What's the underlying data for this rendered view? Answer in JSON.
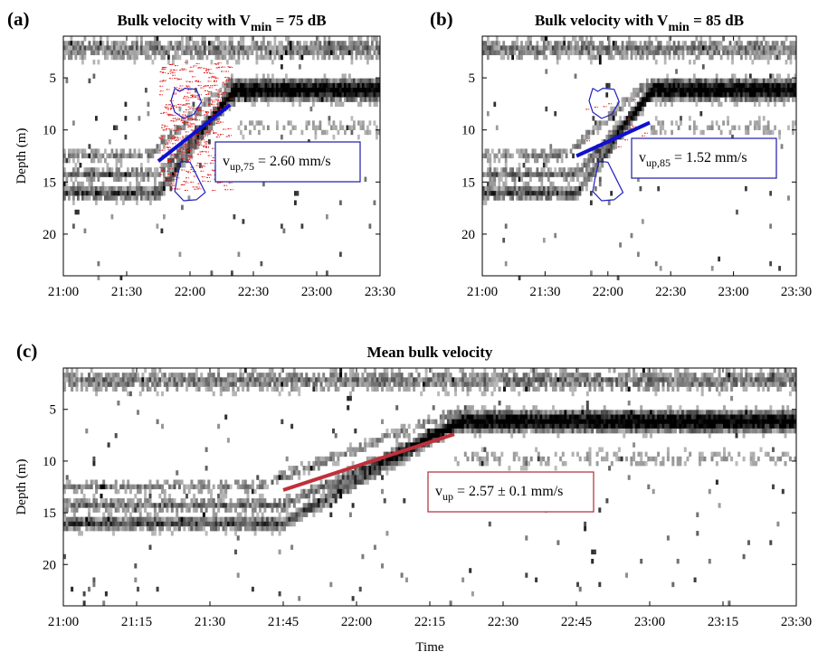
{
  "chart_data": [
    {
      "type": "heatmap",
      "panel_label": "(a)",
      "title_prefix": "Bulk velocity with V",
      "title_sub": "min",
      "title_suffix": " = 75 dB",
      "ylabel": "Depth (m)",
      "xlabel": "",
      "xlim": [
        "21:00",
        "23:30"
      ],
      "ylim": [
        24,
        1
      ],
      "y_reversed": true,
      "x_ticks": [
        "21:00",
        "21:30",
        "22:00",
        "22:30",
        "23:00",
        "23:30"
      ],
      "y_ticks": [
        5,
        10,
        15,
        20
      ],
      "colormap": "grayscale (white = low backscatter, black = high)",
      "fit_line": {
        "x": [
          "21:45",
          "22:19"
        ],
        "depth": [
          13.0,
          7.6
        ],
        "color": "#1010d0"
      },
      "annotation": {
        "main": "v",
        "sub": "up,75",
        "rest": " = 2.60 mm/s",
        "border": "#1a1aa6"
      },
      "detections_color": "#e01818",
      "region_outlines_color": "#2020c0"
    },
    {
      "type": "heatmap",
      "panel_label": "(b)",
      "title_prefix": "Bulk velocity with V",
      "title_sub": "min",
      "title_suffix": " = 85 dB",
      "ylabel": "",
      "xlabel": "",
      "xlim": [
        "21:00",
        "23:30"
      ],
      "ylim": [
        24,
        1
      ],
      "y_reversed": true,
      "x_ticks": [
        "21:00",
        "21:30",
        "22:00",
        "22:30",
        "23:00",
        "23:30"
      ],
      "y_ticks": [
        5,
        10,
        15,
        20
      ],
      "colormap": "grayscale (white = low backscatter, black = high)",
      "fit_line": {
        "x": [
          "21:45",
          "22:20"
        ],
        "depth": [
          12.5,
          9.3
        ],
        "color": "#1010d0"
      },
      "annotation": {
        "main": "v",
        "sub": "up,85",
        "rest": " = 1.52 mm/s",
        "border": "#1a1aa6"
      },
      "detections_color": "#e01818",
      "region_outlines_color": "#2020c0"
    },
    {
      "type": "heatmap",
      "panel_label": "(c)",
      "title_prefix": "Mean bulk velocity",
      "title_sub": "",
      "title_suffix": "",
      "ylabel": "Depth (m)",
      "xlabel": "Time",
      "xlim": [
        "21:00",
        "23:30"
      ],
      "ylim": [
        24,
        1
      ],
      "y_reversed": true,
      "x_ticks": [
        "21:00",
        "21:15",
        "21:30",
        "21:45",
        "22:00",
        "22:15",
        "22:30",
        "22:45",
        "23:00",
        "23:15",
        "23:30"
      ],
      "y_ticks": [
        5,
        10,
        15,
        20
      ],
      "colormap": "grayscale (white = low backscatter, black = high)",
      "fit_line": {
        "x": [
          "21:45",
          "22:20"
        ],
        "depth": [
          12.8,
          7.4
        ],
        "color": "#c0303a"
      },
      "annotation": {
        "main": "v",
        "sub": "up",
        "rest": " = 2.57 ± 0.1 mm/s",
        "border": "#b02a36"
      }
    }
  ]
}
